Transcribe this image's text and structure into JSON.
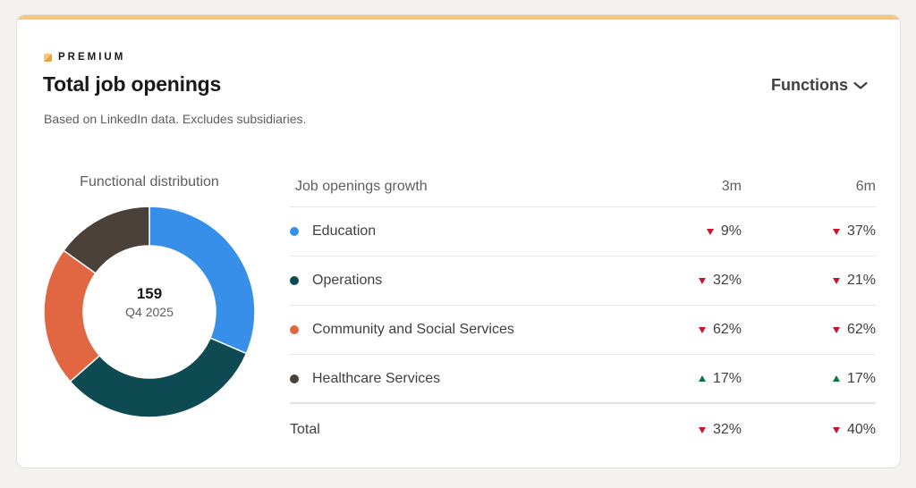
{
  "card": {
    "badge_label": "PREMIUM",
    "title": "Total job openings",
    "subtitle": "Based on LinkedIn data. Excludes subsidiaries.",
    "functions_dropdown": {
      "label": "Functions",
      "icon": "chevron-down-icon"
    },
    "accent_color": "#f8c77e"
  },
  "distribution": {
    "title": "Functional distribution",
    "center_value": "159",
    "center_label": "Q4 2025"
  },
  "growth_table": {
    "headers": {
      "name": "Job openings growth",
      "col_3m": "3m",
      "col_6m": "6m"
    },
    "rows": [
      {
        "name": "Education",
        "color": "#378fe9",
        "g3m": "9%",
        "g3m_dir": "down",
        "g6m": "37%",
        "g6m_dir": "down"
      },
      {
        "name": "Operations",
        "color": "#0e4a52",
        "g3m": "32%",
        "g3m_dir": "down",
        "g6m": "21%",
        "g6m_dir": "down"
      },
      {
        "name": "Community and Social Services",
        "color": "#e06742",
        "g3m": "62%",
        "g3m_dir": "down",
        "g6m": "62%",
        "g6m_dir": "down"
      },
      {
        "name": "Healthcare Services",
        "color": "#4a413a",
        "g3m": "17%",
        "g3m_dir": "up",
        "g6m": "17%",
        "g6m_dir": "up"
      }
    ],
    "total": {
      "name": "Total",
      "g3m": "32%",
      "g3m_dir": "down",
      "g6m": "40%",
      "g6m_dir": "down"
    },
    "colors": {
      "down": "#cb112d",
      "up": "#057642"
    }
  },
  "chart_data": {
    "type": "pie",
    "variant": "donut",
    "title": "Functional distribution",
    "center_text": "159",
    "center_subtext": "Q4 2025",
    "categories": [
      "Education",
      "Operations",
      "Community and Social Services",
      "Healthcare Services"
    ],
    "values": [
      50,
      51,
      34,
      24
    ],
    "colors": [
      "#378fe9",
      "#0e4a52",
      "#e06742",
      "#4a413a"
    ],
    "total": 159
  }
}
